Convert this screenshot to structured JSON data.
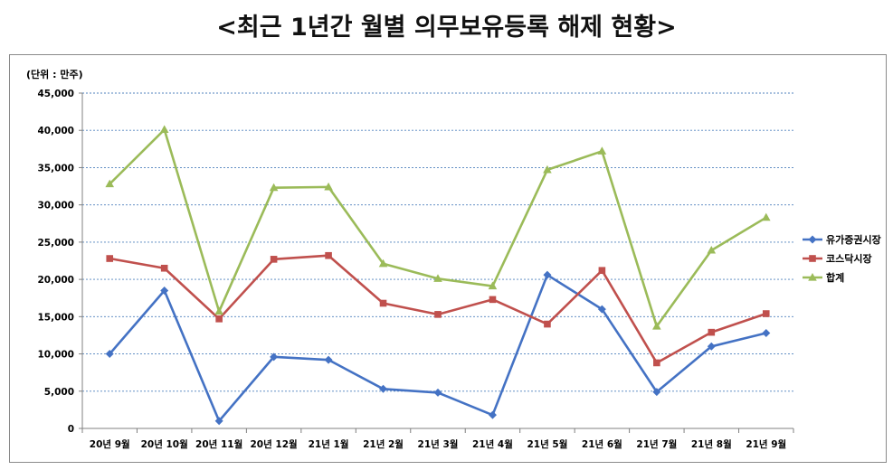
{
  "title": "<최근 1년간 월별 의무보유등록 해제 현황>",
  "chart_data": {
    "type": "line",
    "unit_label": "(단위 : 만주)",
    "categories": [
      "20년 9월",
      "20년 10월",
      "20년 11월",
      "20년 12월",
      "21년 1월",
      "21년 2월",
      "21년 3월",
      "21년 4월",
      "21년 5월",
      "21년 6월",
      "21년 7월",
      "21년 8월",
      "21년 9월"
    ],
    "yticks": [
      "0",
      "5,000",
      "10,000",
      "15,000",
      "20,000",
      "25,000",
      "30,000",
      "35,000",
      "40,000",
      "45,000"
    ],
    "ylim": [
      0,
      45000
    ],
    "grid": true,
    "legend_position": "right",
    "series": [
      {
        "name": "유가증권시장",
        "color": "#4472C4",
        "marker": "diamond",
        "values": [
          10000,
          18500,
          1000,
          9600,
          9200,
          5300,
          4800,
          1800,
          20600,
          16000,
          4900,
          11000,
          12800
        ]
      },
      {
        "name": "코스닥시장",
        "color": "#C0504D",
        "marker": "square",
        "values": [
          22800,
          21500,
          14700,
          22700,
          23200,
          16800,
          15300,
          17300,
          14000,
          21200,
          8800,
          12900,
          15400
        ]
      },
      {
        "name": "합계",
        "color": "#9BBB59",
        "marker": "triangle",
        "values": [
          32800,
          40100,
          15700,
          32300,
          32400,
          22100,
          20100,
          19100,
          34700,
          37200,
          13700,
          23900,
          28300
        ]
      }
    ]
  }
}
